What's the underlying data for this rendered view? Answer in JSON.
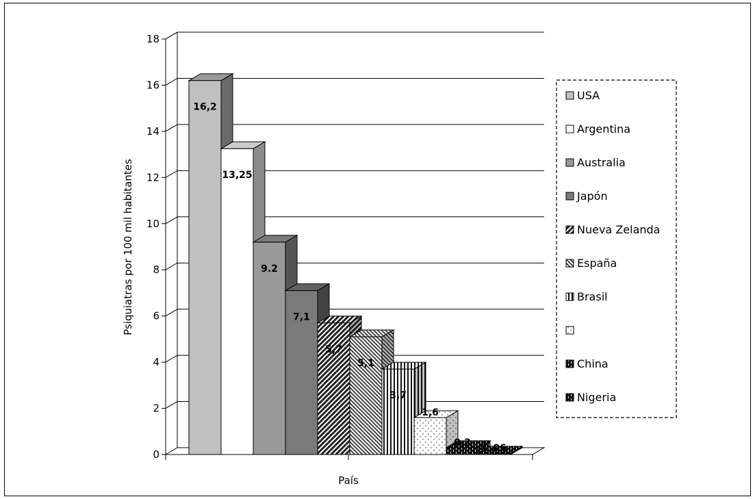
{
  "chart_data": {
    "type": "bar",
    "title": "",
    "xlabel": "País",
    "ylabel": "Psiquiatras por 100 mil habitantes",
    "ylim": [
      0,
      18
    ],
    "yticks": [
      0,
      2,
      4,
      6,
      8,
      10,
      12,
      14,
      16,
      18
    ],
    "grid": true,
    "legend_position": "right",
    "categories": [
      "USA",
      "Argentina",
      "Australia",
      "Japón",
      "Nueva Zelanda",
      "España",
      "Brasil",
      "",
      "China",
      "Nigeria"
    ],
    "values": [
      16.2,
      13.25,
      9.2,
      7.1,
      5.7,
      5.1,
      3.7,
      1.6,
      0.3,
      0.06
    ],
    "data_labels": [
      "16,2",
      "13,25",
      "9.2",
      "7,1",
      "5,7",
      "5,1",
      "3,7",
      "1,6",
      "0,3",
      "0,06"
    ],
    "fills": [
      "#c0c0c0",
      "#ffffff",
      "#999999",
      "#7a7a7a",
      "diag-dense",
      "diag-light",
      "vert-stripe",
      "dots",
      "black-check",
      "black-check"
    ]
  }
}
